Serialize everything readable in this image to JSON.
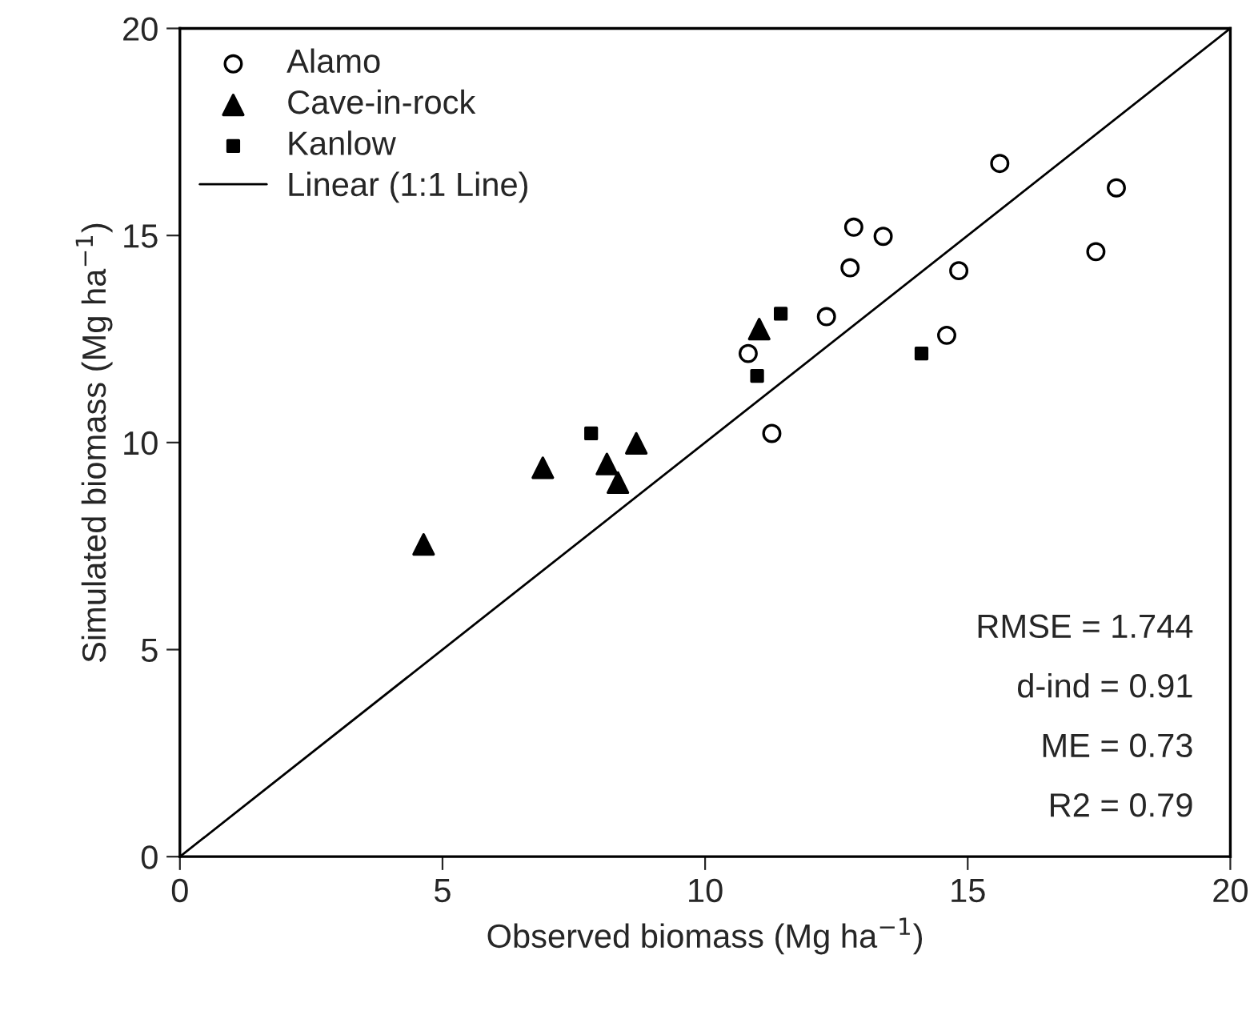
{
  "chart_data": {
    "type": "scatter",
    "xlabel": "Observed biomass (Mg ha$^{−1}$)",
    "ylabel": "Simulated biomass (Mg ha$^{−1}$)",
    "xlim": [
      0,
      20
    ],
    "ylim": [
      0,
      20
    ],
    "xticks": [
      0,
      5,
      10,
      15,
      20
    ],
    "yticks": [
      0,
      5,
      10,
      15,
      20
    ],
    "grid": false,
    "legend": "top left",
    "series": [
      {
        "name": "Alamo",
        "color": "#000000",
        "marker": "circle",
        "x": [
          15.61,
          17.83,
          17.44,
          12.83,
          13.39,
          12.76,
          14.83,
          12.31,
          10.82,
          14.6,
          11.27
        ],
        "values": [
          16.74,
          16.15,
          14.61,
          15.2,
          14.98,
          14.22,
          14.15,
          13.04,
          12.15,
          12.59,
          10.22
        ]
      },
      {
        "name": "Cave-in-rock",
        "color": "#000000",
        "marker": "triangle",
        "x": [
          4.64,
          6.91,
          8.13,
          8.34,
          8.69,
          11.03
        ],
        "values": [
          7.54,
          9.39,
          9.48,
          9.03,
          9.98,
          12.74
        ]
      },
      {
        "name": "Kanlow",
        "color": "#000000",
        "marker": "square",
        "x": [
          11.44,
          10.99,
          7.83,
          14.12
        ],
        "values": [
          13.11,
          11.61,
          10.22,
          12.15
        ]
      },
      {
        "name": "Linear (1:1 Line)",
        "type": "line",
        "color": "#000000",
        "marker": "none",
        "line_style": "solid",
        "x": [
          0,
          20
        ],
        "values": [
          0,
          20
        ]
      }
    ],
    "annotations": [
      "RMSE = 1.744",
      "d-ind = 0.91",
      "ME = 0.73",
      "R2 = 0.79"
    ]
  }
}
